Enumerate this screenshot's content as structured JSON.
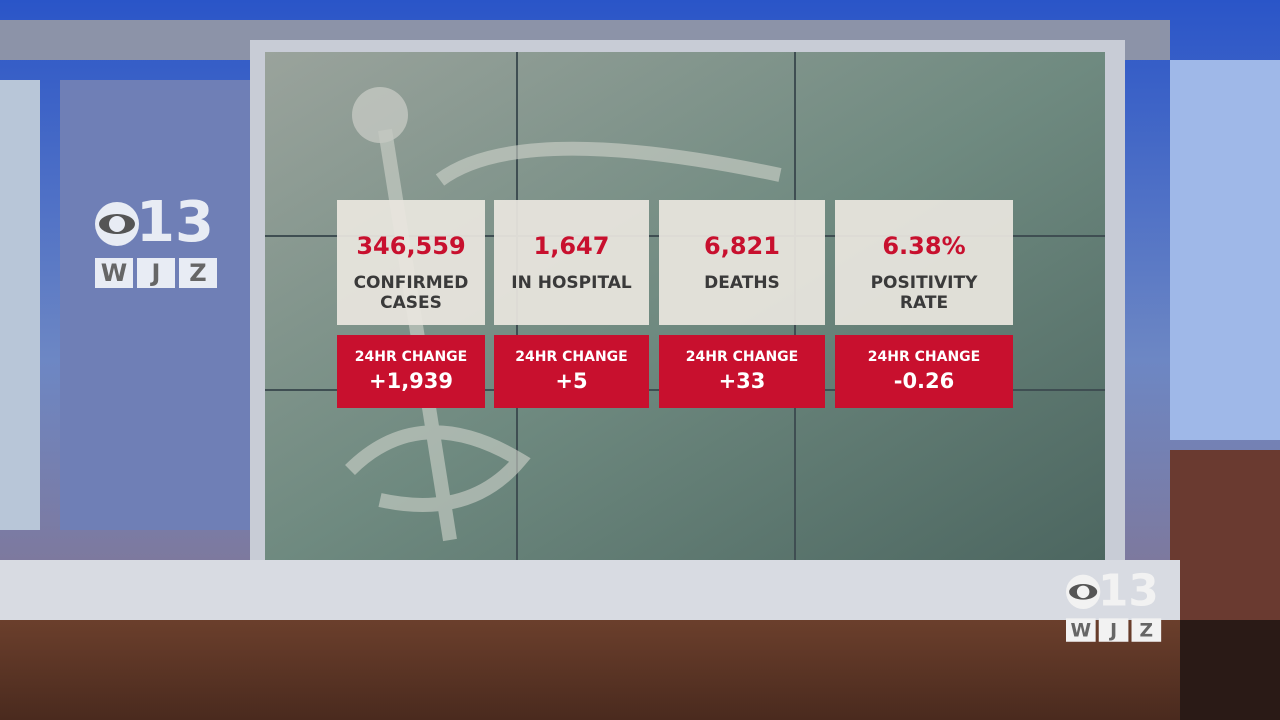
{
  "logo": {
    "number": "13",
    "call_letters": [
      "W",
      "J",
      "Z"
    ]
  },
  "cards": [
    {
      "value": "346,559",
      "label": [
        "CONFIRMED",
        "CASES"
      ],
      "change_label": "24HR CHANGE",
      "change": "+1,939"
    },
    {
      "value": "1,647",
      "label": [
        "IN HOSPITAL"
      ],
      "change_label": "24HR CHANGE",
      "change": "+5"
    },
    {
      "value": "6,821",
      "label": [
        "DEATHS"
      ],
      "change_label": "24HR CHANGE",
      "change": "+33"
    },
    {
      "value": "6.38%",
      "label": [
        "POSITIVITY",
        "RATE"
      ],
      "change_label": "24HR CHANGE",
      "change": "-0.26"
    }
  ],
  "watermark": {
    "number": "13",
    "call_letters": [
      "W",
      "J",
      "Z"
    ]
  }
}
